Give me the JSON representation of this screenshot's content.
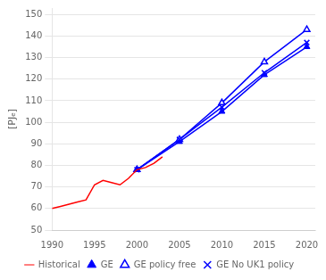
{
  "chart_data": {
    "type": "line",
    "ylabel": "[PJₑ]",
    "series": [
      {
        "name": "Historical",
        "color": "#ff0000",
        "marker": "none",
        "x": [
          1990,
          1991,
          1992,
          1993,
          1994,
          1995,
          1996,
          1997,
          1998,
          1999,
          2000,
          2001,
          2002,
          2003
        ],
        "values": [
          60,
          61,
          62,
          63,
          64,
          71,
          73,
          72,
          71,
          74,
          78,
          79,
          81,
          84
        ]
      },
      {
        "name": "GE",
        "color": "#0000ff",
        "marker": "triangle",
        "x": [
          2000,
          2005,
          2010,
          2015,
          2020
        ],
        "values": [
          78,
          91,
          105,
          122,
          135
        ]
      },
      {
        "name": "GE policy free",
        "color": "#0000ff",
        "marker": "open_triangle",
        "x": [
          2000,
          2005,
          2010,
          2015,
          2020
        ],
        "values": [
          78,
          92,
          109,
          128,
          143
        ]
      },
      {
        "name": "GE No UK1 policy",
        "color": "#0000ff",
        "marker": "x",
        "x": [
          2000,
          2005,
          2010,
          2015,
          2020
        ],
        "values": [
          78,
          92,
          107,
          123,
          137
        ]
      }
    ],
    "xlim": [
      1990,
      2021
    ],
    "xticks": [
      1990,
      1995,
      2000,
      2005,
      2010,
      2015,
      2020
    ],
    "ylim": [
      50,
      153
    ],
    "yticks": [
      50,
      60,
      70,
      80,
      90,
      100,
      110,
      120,
      130,
      140,
      150
    ],
    "grid": "y",
    "legend": "bottom"
  }
}
